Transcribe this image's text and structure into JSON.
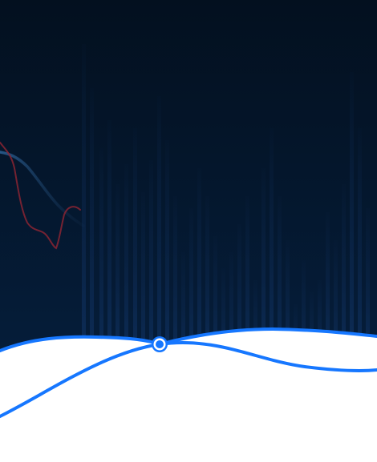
{
  "theme": {
    "background_top": "#03101f",
    "background_bottom": "#062142",
    "bar_color": "#0d2a52",
    "accent_blue": "#1677ff",
    "line_dark_blue": "#1e4a78",
    "line_red": "#8a2433",
    "wave_fill": "#ffffff"
  },
  "icons": {
    "curve_node": "circle-node-icon"
  }
}
